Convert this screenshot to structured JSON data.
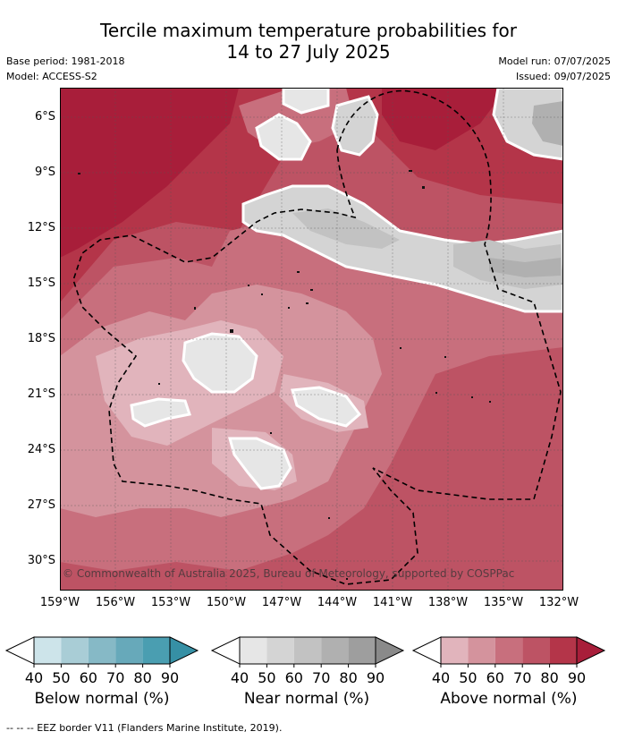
{
  "title_line1": "Tercile maximum temperature probabilities for",
  "title_line2": "14 to 27 July 2025",
  "meta": {
    "base_period": "Base period: 1981-2018",
    "model": "Model: ACCESS-S2",
    "model_run": "Model run: 07/07/2025",
    "issued": "Issued: 09/07/2025"
  },
  "copyright": "© Commonwealth of Australia 2025, Bureau of Meteorology, supported by COSPPac",
  "axes": {
    "lat_labels": [
      "6°S",
      "9°S",
      "12°S",
      "15°S",
      "18°S",
      "21°S",
      "24°S",
      "27°S",
      "30°S"
    ],
    "lon_labels": [
      "159°W",
      "156°W",
      "153°W",
      "150°W",
      "147°W",
      "144°W",
      "141°W",
      "138°W",
      "135°W",
      "132°W"
    ]
  },
  "legends": [
    {
      "title": "Below normal (%)",
      "ticks": [
        "40",
        "50",
        "60",
        "70",
        "80",
        "90"
      ],
      "colors": [
        "#ffffff",
        "#cde4ea",
        "#a9cdd6",
        "#86b9c6",
        "#67a9ba",
        "#4a9eb1",
        "#3690a5"
      ]
    },
    {
      "title": "Near normal (%)",
      "ticks": [
        "40",
        "50",
        "60",
        "70",
        "80",
        "90"
      ],
      "colors": [
        "#ffffff",
        "#e6e6e6",
        "#d4d4d4",
        "#c2c2c2",
        "#b0b0b0",
        "#9e9e9e",
        "#8a8a8a"
      ]
    },
    {
      "title": "Above normal (%)",
      "ticks": [
        "40",
        "50",
        "60",
        "70",
        "80",
        "90"
      ],
      "colors": [
        "#ffffff",
        "#e1b4bc",
        "#d4939d",
        "#c86f7d",
        "#bd5364",
        "#b43549",
        "#a81e3a"
      ]
    }
  ],
  "footer": "--  --  -- EEZ border V11 (Flanders Marine Institute, 2019).",
  "colors": {
    "above_40": "#e1b4bc",
    "above_50": "#d4939d",
    "above_60": "#c86f7d",
    "above_70": "#bd5364",
    "above_80": "#b43549",
    "above_90": "#a81e3a",
    "near_50": "#e6e6e6",
    "near_60": "#d4d4d4",
    "near_70": "#c2c2c2",
    "near_80": "#b0b0b0"
  }
}
